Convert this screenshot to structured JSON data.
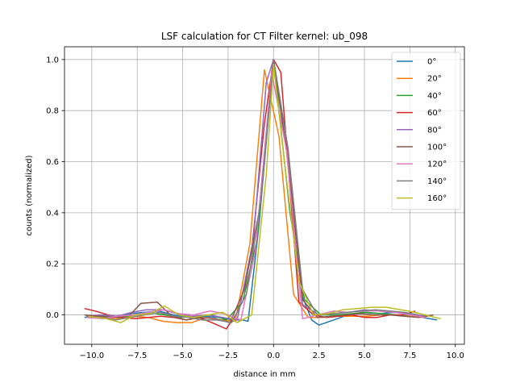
{
  "chart_data": {
    "type": "line",
    "title": "LSF calculation for CT Filter kernel: ub_098",
    "xlabel": "distance in mm",
    "ylabel": "counts (normalized)",
    "xlim": [
      -11.5,
      10.5
    ],
    "ylim": [
      -0.115,
      1.05
    ],
    "xticks": [
      -10.0,
      -7.5,
      -5.0,
      -2.5,
      0.0,
      2.5,
      5.0,
      7.5,
      10.0
    ],
    "xtick_labels": [
      "−10.0",
      "−7.5",
      "−5.0",
      "−2.5",
      "0.0",
      "2.5",
      "5.0",
      "7.5",
      "10.0"
    ],
    "yticks": [
      0.0,
      0.2,
      0.4,
      0.6,
      0.8,
      1.0
    ],
    "ytick_labels": [
      "0.0",
      "0.2",
      "0.4",
      "0.6",
      "0.8",
      "1.0"
    ],
    "grid": true,
    "legend_position": "top-right",
    "series": [
      {
        "name": "0°",
        "color": "#1f77b4",
        "x": [
          -10.4,
          -9.5,
          -8.7,
          -7.9,
          -7.1,
          -6.3,
          -5.5,
          -4.6,
          -3.8,
          -3.0,
          -2.2,
          -1.7,
          -1.4,
          -0.8,
          0.0,
          0.8,
          1.6,
          2.1,
          2.5,
          3.3,
          4.1,
          4.9,
          5.8,
          6.6,
          7.4,
          8.2,
          9.0
        ],
        "y": [
          -0.01,
          0.0,
          -0.005,
          0.005,
          0.01,
          0.015,
          0.0,
          -0.01,
          -0.005,
          -0.01,
          -0.02,
          -0.02,
          -0.025,
          0.35,
          1.0,
          0.6,
          0.07,
          -0.02,
          -0.04,
          -0.02,
          0.0,
          0.01,
          0.005,
          0.01,
          0.005,
          -0.01,
          -0.02
        ]
      },
      {
        "name": "20°",
        "color": "#ff7f0e",
        "x": [
          -10.1,
          -9.3,
          -8.5,
          -7.7,
          -6.9,
          -6.1,
          -5.3,
          -4.5,
          -3.7,
          -2.9,
          -2.1,
          -1.3,
          -0.5,
          0.3,
          1.1,
          1.9,
          2.7,
          3.5,
          4.3,
          5.1,
          5.9,
          6.7,
          7.5,
          8.3
        ],
        "y": [
          -0.005,
          -0.01,
          -0.015,
          -0.005,
          -0.01,
          -0.025,
          -0.03,
          -0.03,
          -0.01,
          -0.02,
          -0.025,
          0.28,
          0.96,
          0.7,
          0.08,
          -0.01,
          -0.01,
          -0.005,
          -0.005,
          -0.005,
          0.0,
          0.0,
          -0.005,
          -0.01
        ]
      },
      {
        "name": "40°",
        "color": "#2ca02c",
        "x": [
          -10.3,
          -9.4,
          -8.5,
          -7.7,
          -6.8,
          -6.0,
          -5.1,
          -4.3,
          -3.4,
          -2.6,
          -1.7,
          -0.9,
          0.0,
          0.9,
          1.7,
          2.6,
          3.4,
          4.3,
          5.1,
          6.0,
          6.8,
          7.7,
          8.5
        ],
        "y": [
          -0.005,
          -0.005,
          -0.01,
          0.0,
          0.01,
          0.0,
          -0.01,
          -0.005,
          0.0,
          -0.02,
          0.05,
          0.3,
          1.0,
          0.4,
          0.06,
          0.0,
          0.0,
          0.005,
          0.01,
          0.005,
          0.0,
          0.0,
          -0.005
        ]
      },
      {
        "name": "60°",
        "color": "#d62728",
        "x": [
          -10.4,
          -9.8,
          -9.1,
          -8.4,
          -7.6,
          -6.9,
          -6.2,
          -5.5,
          -4.8,
          -4.1,
          -3.4,
          -2.6,
          -1.9,
          -1.2,
          -0.5,
          0.0,
          0.4,
          1.4,
          2.2,
          2.9,
          3.6,
          4.3,
          5.0,
          5.7,
          6.4,
          7.1,
          7.8
        ],
        "y": [
          0.025,
          0.015,
          0.0,
          -0.01,
          -0.015,
          -0.01,
          -0.005,
          -0.01,
          -0.02,
          -0.01,
          -0.03,
          -0.055,
          0.02,
          0.25,
          0.75,
          1.0,
          0.95,
          0.05,
          0.0,
          -0.01,
          -0.005,
          0.0,
          -0.01,
          -0.01,
          0.0,
          0.0,
          0.015
        ]
      },
      {
        "name": "80°",
        "color": "#9467bd",
        "x": [
          -10.3,
          -9.5,
          -8.6,
          -7.8,
          -7.0,
          -6.1,
          -5.3,
          -4.5,
          -3.6,
          -2.8,
          -2.0,
          -1.1,
          -0.4,
          0.0,
          0.8,
          1.6,
          2.5,
          3.3,
          4.1,
          5.0,
          5.8,
          6.6,
          7.5,
          8.3
        ],
        "y": [
          -0.005,
          0.0,
          -0.005,
          0.01,
          0.02,
          0.02,
          0.005,
          -0.005,
          0.0,
          -0.01,
          -0.02,
          0.3,
          0.91,
          1.0,
          0.65,
          0.04,
          0.0,
          0.005,
          0.01,
          0.02,
          0.015,
          0.01,
          0.005,
          -0.005
        ]
      },
      {
        "name": "100°",
        "color": "#8c564b",
        "x": [
          -10.4,
          -9.6,
          -8.8,
          -7.9,
          -7.3,
          -6.4,
          -5.6,
          -4.8,
          -4.0,
          -3.2,
          -2.4,
          -1.6,
          -0.8,
          0.0,
          0.8,
          1.6,
          2.4,
          3.2,
          4.0,
          4.8,
          5.6,
          6.4,
          7.2,
          8.0,
          8.8
        ],
        "y": [
          0.0,
          -0.005,
          -0.01,
          0.0,
          0.045,
          0.05,
          -0.005,
          -0.02,
          -0.01,
          -0.015,
          -0.03,
          0.1,
          0.4,
          1.0,
          0.6,
          0.06,
          -0.01,
          -0.005,
          0.0,
          0.005,
          0.0,
          0.0,
          -0.005,
          -0.01,
          0.0
        ]
      },
      {
        "name": "120°",
        "color": "#e377c2",
        "x": [
          -10.3,
          -9.4,
          -8.6,
          -7.7,
          -6.9,
          -6.0,
          -5.2,
          -4.4,
          -3.5,
          -2.7,
          -1.8,
          -1.0,
          -0.1,
          0.7,
          1.6,
          2.4,
          3.3,
          4.1,
          5.0,
          5.8,
          6.7,
          7.5,
          8.4
        ],
        "y": [
          -0.01,
          -0.015,
          -0.005,
          0.0,
          0.01,
          0.02,
          0.005,
          0.0,
          0.015,
          0.005,
          -0.02,
          0.25,
          0.95,
          0.65,
          -0.015,
          0.0,
          0.015,
          0.01,
          0.015,
          0.015,
          0.01,
          0.0,
          -0.01
        ]
      },
      {
        "name": "140°",
        "color": "#7f7f7f",
        "x": [
          -10.3,
          -9.5,
          -8.7,
          -7.9,
          -7.1,
          -6.3,
          -5.5,
          -4.7,
          -3.9,
          -3.1,
          -2.3,
          -1.5,
          -0.7,
          0.0,
          0.8,
          1.6,
          2.4,
          3.2,
          4.0,
          4.8,
          5.6,
          6.4,
          7.2,
          8.0
        ],
        "y": [
          -0.005,
          -0.01,
          -0.02,
          -0.01,
          0.0,
          0.01,
          -0.005,
          -0.01,
          -0.02,
          -0.02,
          -0.03,
          0.08,
          0.45,
          1.0,
          0.65,
          0.1,
          0.0,
          0.005,
          0.01,
          0.015,
          0.02,
          0.015,
          0.01,
          0.0
        ]
      },
      {
        "name": "160°",
        "color": "#bcbd22",
        "x": [
          -10.2,
          -9.2,
          -8.4,
          -7.6,
          -6.8,
          -6.0,
          -5.2,
          -4.4,
          -3.6,
          -2.8,
          -2.0,
          -1.2,
          -0.4,
          0.0,
          0.6,
          1.4,
          2.2,
          3.0,
          3.8,
          4.6,
          5.4,
          6.2,
          7.0,
          7.8,
          8.6,
          9.2
        ],
        "y": [
          -0.005,
          -0.015,
          -0.03,
          0.0,
          0.005,
          0.035,
          0.0,
          -0.01,
          0.0,
          0.01,
          -0.03,
          0.0,
          0.55,
          0.98,
          0.6,
          0.13,
          0.0,
          0.005,
          0.02,
          0.025,
          0.03,
          0.03,
          0.02,
          0.01,
          -0.005,
          -0.015
        ]
      }
    ]
  }
}
